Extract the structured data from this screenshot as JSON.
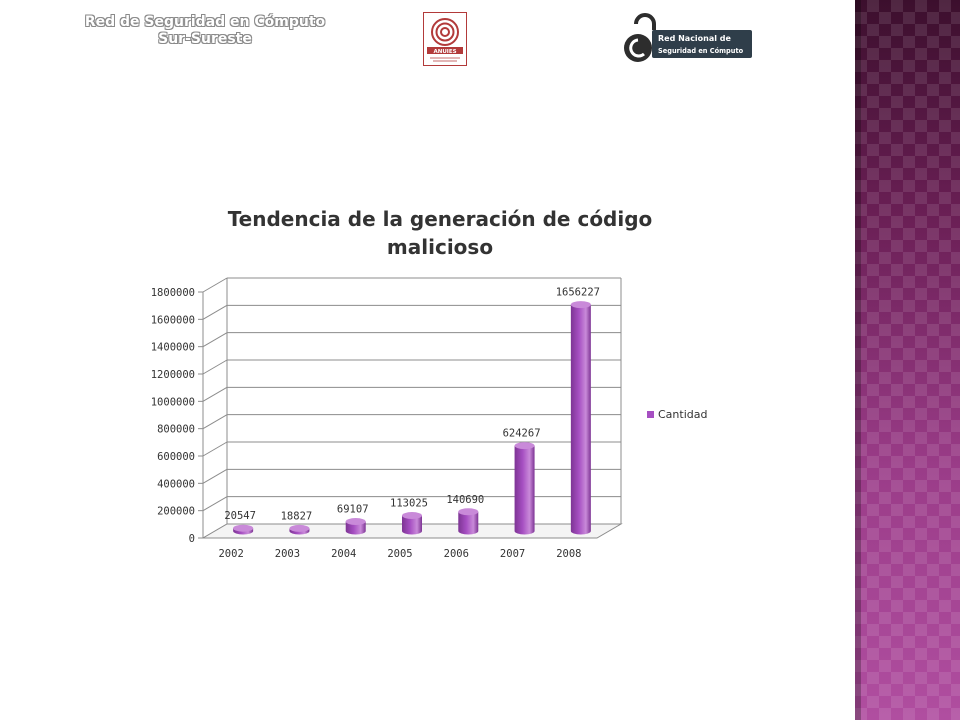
{
  "header": {
    "org_line1": "Red de Seguridad en Cómputo",
    "org_line2": "Sur-Sureste",
    "anuies_logo_text": "ANUIES",
    "rnsc_logo_line1": "Red Nacional de",
    "rnsc_logo_line2": "Seguridad en Cómputo"
  },
  "colors": {
    "bar": "#a64fc2",
    "bar_top": "#c98ad9",
    "bar_dark": "#7d3494",
    "sidebar": "#7a2a68",
    "logo_red": "#b23a3a"
  },
  "chart_data": {
    "type": "bar",
    "title_line1": "Tendencia de la generación de código",
    "title_line2": "malicioso",
    "categories": [
      "2002",
      "2003",
      "2004",
      "2005",
      "2006",
      "2007",
      "2008"
    ],
    "series": [
      {
        "name": "Cantidad",
        "values": [
          20547,
          18827,
          69107,
          113025,
          140690,
          624267,
          1656227
        ],
        "labels": [
          "20547",
          "18827",
          "69107",
          "113025",
          "140690",
          "624267",
          "1656227"
        ]
      }
    ],
    "yticks": [
      "0",
      "200000",
      "400000",
      "600000",
      "800000",
      "1000000",
      "1200000",
      "1400000",
      "1600000",
      "1800000"
    ],
    "ylim": [
      0,
      1800000
    ],
    "grid": true,
    "legend_position": "right",
    "xlabel": "",
    "ylabel": ""
  }
}
